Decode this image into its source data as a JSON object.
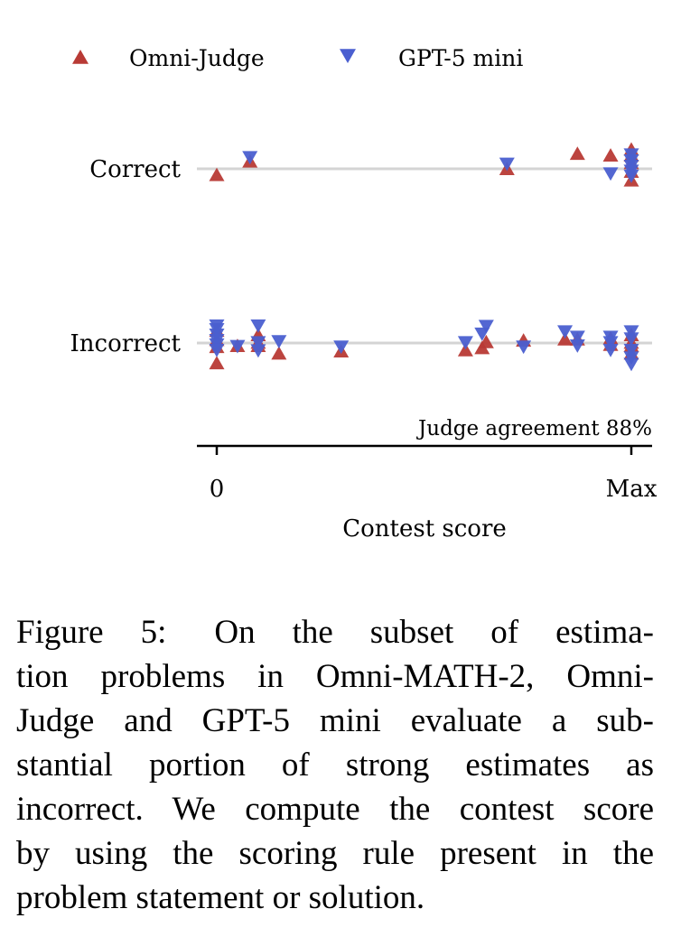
{
  "chart_data": {
    "type": "scatter",
    "title": "",
    "legend": {
      "placement": "top",
      "entries": [
        {
          "name": "Omni-Judge",
          "marker": "triangle-up",
          "color": "#b83a35"
        },
        {
          "name": "GPT-5 mini",
          "marker": "triangle-down",
          "color": "#4a5fd0"
        }
      ]
    },
    "xlabel": "Contest score",
    "x_ticks": [
      "0",
      "Max"
    ],
    "xlim": [
      0,
      1
    ],
    "y_categories": [
      "Correct",
      "Incorrect"
    ],
    "annotation": "Judge agreement 88%",
    "grid": "horizontal reference lines at each category",
    "series": [
      {
        "name": "Omni-Judge",
        "points": [
          {
            "x": 0.0,
            "y": "Correct",
            "jitter": -0.12
          },
          {
            "x": 0.08,
            "y": "Correct",
            "jitter": 0.13
          },
          {
            "x": 0.7,
            "y": "Correct",
            "jitter": -0.01
          },
          {
            "x": 0.87,
            "y": "Correct",
            "jitter": 0.27
          },
          {
            "x": 0.95,
            "y": "Correct",
            "jitter": 0.24
          },
          {
            "x": 1.0,
            "y": "Correct",
            "jitter": 0.35
          },
          {
            "x": 1.0,
            "y": "Correct",
            "jitter": 0.24
          },
          {
            "x": 1.0,
            "y": "Correct",
            "jitter": 0.1
          },
          {
            "x": 1.0,
            "y": "Correct",
            "jitter": -0.06
          },
          {
            "x": 1.0,
            "y": "Correct",
            "jitter": -0.22
          },
          {
            "x": 0.0,
            "y": "Incorrect",
            "jitter": 0.22
          },
          {
            "x": 0.0,
            "y": "Incorrect",
            "jitter": 0.05
          },
          {
            "x": 0.0,
            "y": "Incorrect",
            "jitter": -0.08
          },
          {
            "x": 0.0,
            "y": "Incorrect",
            "jitter": -0.38
          },
          {
            "x": 0.05,
            "y": "Incorrect",
            "jitter": -0.06
          },
          {
            "x": 0.1,
            "y": "Incorrect",
            "jitter": 0.14
          },
          {
            "x": 0.1,
            "y": "Incorrect",
            "jitter": 0.0
          },
          {
            "x": 0.1,
            "y": "Incorrect",
            "jitter": -0.06
          },
          {
            "x": 0.15,
            "y": "Incorrect",
            "jitter": -0.2
          },
          {
            "x": 0.3,
            "y": "Incorrect",
            "jitter": -0.16
          },
          {
            "x": 0.6,
            "y": "Incorrect",
            "jitter": -0.14
          },
          {
            "x": 0.64,
            "y": "Incorrect",
            "jitter": -0.1
          },
          {
            "x": 0.65,
            "y": "Incorrect",
            "jitter": 0.01
          },
          {
            "x": 0.74,
            "y": "Incorrect",
            "jitter": 0.04
          },
          {
            "x": 0.84,
            "y": "Incorrect",
            "jitter": 0.06
          },
          {
            "x": 0.87,
            "y": "Incorrect",
            "jitter": 0.06
          },
          {
            "x": 0.95,
            "y": "Incorrect",
            "jitter": 0.08
          },
          {
            "x": 0.95,
            "y": "Incorrect",
            "jitter": -0.04
          },
          {
            "x": 1.0,
            "y": "Incorrect",
            "jitter": 0.14
          },
          {
            "x": 1.0,
            "y": "Incorrect",
            "jitter": 0.0
          },
          {
            "x": 1.0,
            "y": "Incorrect",
            "jitter": -0.06
          },
          {
            "x": 1.0,
            "y": "Incorrect",
            "jitter": -0.2
          }
        ]
      },
      {
        "name": "GPT-5 mini",
        "points": [
          {
            "x": 0.08,
            "y": "Correct",
            "jitter": 0.22
          },
          {
            "x": 0.7,
            "y": "Correct",
            "jitter": 0.1
          },
          {
            "x": 0.95,
            "y": "Correct",
            "jitter": -0.08
          },
          {
            "x": 1.0,
            "y": "Correct",
            "jitter": 0.27
          },
          {
            "x": 1.0,
            "y": "Correct",
            "jitter": 0.16
          },
          {
            "x": 1.0,
            "y": "Correct",
            "jitter": 0.06
          },
          {
            "x": 1.0,
            "y": "Correct",
            "jitter": -0.03
          },
          {
            "x": 1.0,
            "y": "Correct",
            "jitter": -0.12
          },
          {
            "x": 0.0,
            "y": "Incorrect",
            "jitter": 0.33
          },
          {
            "x": 0.0,
            "y": "Incorrect",
            "jitter": 0.26
          },
          {
            "x": 0.0,
            "y": "Incorrect",
            "jitter": 0.16
          },
          {
            "x": 0.0,
            "y": "Incorrect",
            "jitter": 0.06
          },
          {
            "x": 0.0,
            "y": "Incorrect",
            "jitter": -0.02
          },
          {
            "x": 0.0,
            "y": "Incorrect",
            "jitter": -0.12
          },
          {
            "x": 0.05,
            "y": "Incorrect",
            "jitter": -0.05
          },
          {
            "x": 0.1,
            "y": "Incorrect",
            "jitter": 0.33
          },
          {
            "x": 0.1,
            "y": "Incorrect",
            "jitter": 0.02
          },
          {
            "x": 0.1,
            "y": "Incorrect",
            "jitter": -0.13
          },
          {
            "x": 0.15,
            "y": "Incorrect",
            "jitter": 0.04
          },
          {
            "x": 0.3,
            "y": "Incorrect",
            "jitter": -0.06
          },
          {
            "x": 0.6,
            "y": "Incorrect",
            "jitter": 0.02
          },
          {
            "x": 0.64,
            "y": "Incorrect",
            "jitter": 0.18
          },
          {
            "x": 0.65,
            "y": "Incorrect",
            "jitter": 0.32
          },
          {
            "x": 0.74,
            "y": "Incorrect",
            "jitter": -0.06
          },
          {
            "x": 0.84,
            "y": "Incorrect",
            "jitter": 0.22
          },
          {
            "x": 0.87,
            "y": "Incorrect",
            "jitter": 0.12
          },
          {
            "x": 0.87,
            "y": "Incorrect",
            "jitter": -0.04
          },
          {
            "x": 0.95,
            "y": "Incorrect",
            "jitter": 0.12
          },
          {
            "x": 0.95,
            "y": "Incorrect",
            "jitter": 0.02
          },
          {
            "x": 0.95,
            "y": "Incorrect",
            "jitter": -0.12
          },
          {
            "x": 1.0,
            "y": "Incorrect",
            "jitter": 0.22
          },
          {
            "x": 1.0,
            "y": "Incorrect",
            "jitter": 0.09
          },
          {
            "x": 1.0,
            "y": "Incorrect",
            "jitter": -0.12
          },
          {
            "x": 1.0,
            "y": "Incorrect",
            "jitter": -0.26
          },
          {
            "x": 1.0,
            "y": "Incorrect",
            "jitter": -0.38
          }
        ]
      }
    ]
  },
  "caption": {
    "label": "Figure 5:",
    "lines": [
      "On the subset of estima-",
      "tion problems in Omni-MATH-2, Omni-",
      "Judge and GPT-5 mini evaluate a sub-",
      "stantial portion of strong estimates as",
      "incorrect. We compute the contest score",
      "by using the scoring rule present in the",
      "problem statement or solution."
    ]
  }
}
